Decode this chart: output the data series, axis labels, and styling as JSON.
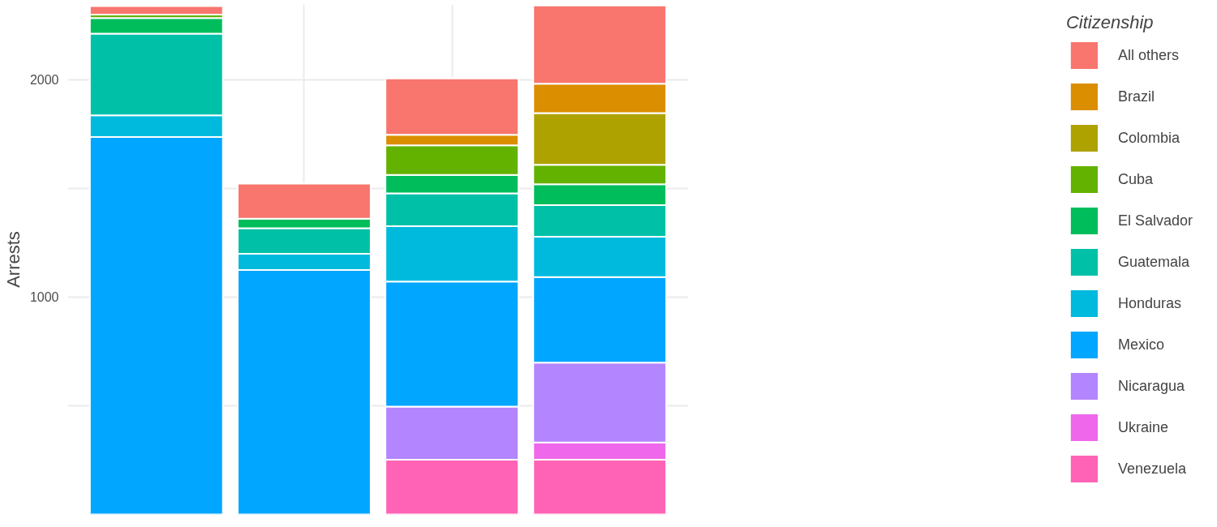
{
  "chart_data": {
    "type": "bar",
    "stacked": true,
    "ylabel": "Arrests",
    "legend_title": "Citizenship",
    "legend": "right",
    "grid": true,
    "categories": [
      null,
      null,
      null,
      null
    ],
    "ylim": [
      0,
      2345
    ],
    "yticks": [
      {
        "value": 500,
        "label": null
      },
      1000,
      {
        "value": 1500,
        "label": null
      },
      2000
    ],
    "series": [
      {
        "name": "Venezuela",
        "color": "#ff63b6",
        "values": [
          null,
          null,
          252,
          252
        ]
      },
      {
        "name": "Ukraine",
        "color": "#ef67eb",
        "values": [
          null,
          null,
          null,
          79
        ]
      },
      {
        "name": "Nicaragua",
        "color": "#b385ff",
        "values": [
          null,
          null,
          244,
          367
        ]
      },
      {
        "name": "Mexico",
        "color": "#00a6ff",
        "values": [
          1735,
          1124,
          575,
          393
        ]
      },
      {
        "name": "Honduras",
        "color": "#00bade",
        "values": [
          100,
          75,
          254,
          186
        ]
      },
      {
        "name": "Guatemala",
        "color": "#00c1a7",
        "values": [
          376,
          117,
          151,
          145
        ]
      },
      {
        "name": "El Salvador",
        "color": "#00bd5c",
        "values": [
          72,
          44,
          85,
          96
        ]
      },
      {
        "name": "Cuba",
        "color": "#64b200",
        "values": [
          15,
          null,
          136,
          90
        ]
      },
      {
        "name": "Colombia",
        "color": "#aea200",
        "values": [
          null,
          null,
          null,
          237
        ]
      },
      {
        "name": "Brazil",
        "color": "#db8e00",
        "values": [
          null,
          null,
          49,
          136
        ]
      },
      {
        "name": "All others",
        "color": "#f8766d",
        "values": [
          40,
          161,
          259,
          359
        ]
      }
    ]
  }
}
